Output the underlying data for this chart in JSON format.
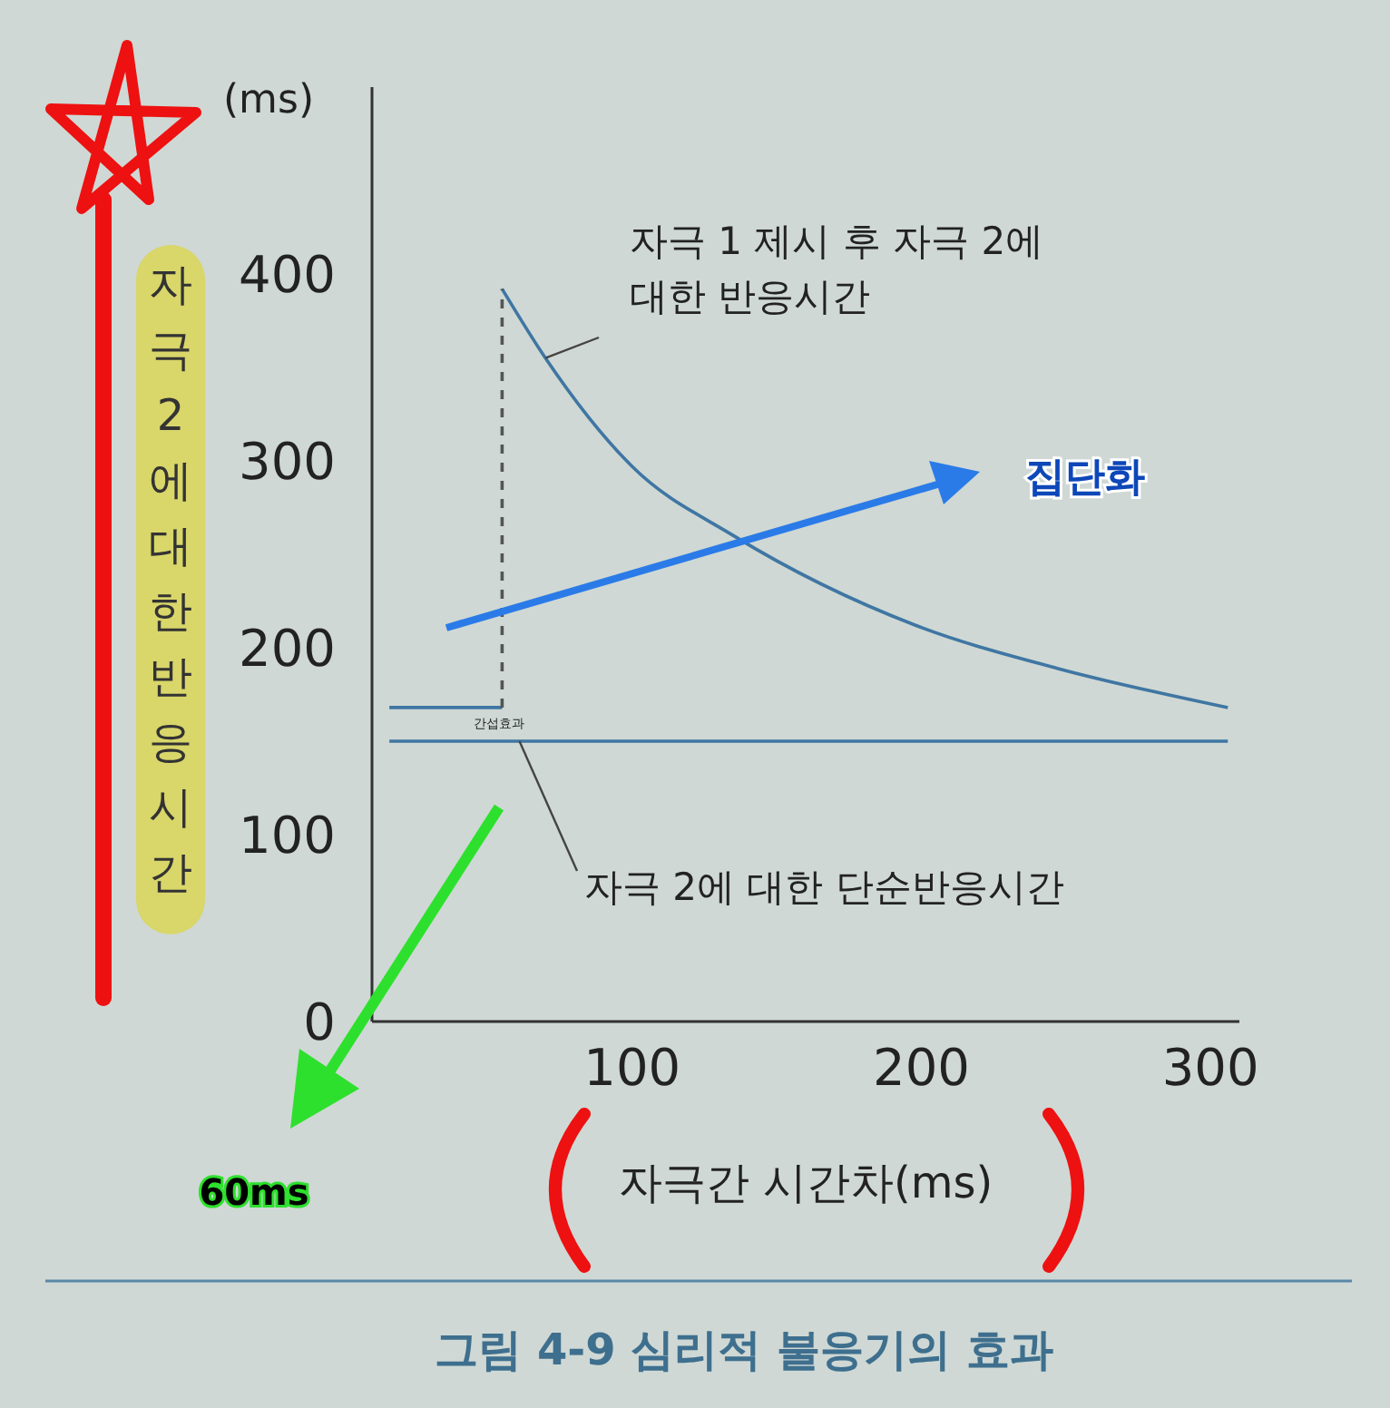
{
  "chart_data": {
    "type": "line",
    "title": "그림 4-9  심리적 불응기의 효과",
    "xlabel": "자극간 시간차(ms)",
    "ylabel": "자극2에대한반응시간",
    "xlim": [
      10,
      310
    ],
    "xticks": [
      100,
      200,
      300
    ],
    "ylim": [
      0,
      500
    ],
    "yticks": [
      0,
      100,
      200,
      300,
      400
    ],
    "grid": false,
    "series": [
      {
        "color": "#3f76a3",
        "x": [
          55,
          70,
          100,
          135,
          198,
          247,
          306
        ],
        "values": [
          392,
          355,
          297,
          260,
          212,
          189,
          168
        ]
      },
      {
        "color": "#3f76a3",
        "x": [
          16,
          55
        ],
        "values": [
          168,
          168
        ]
      },
      {
        "color": "#555555",
        "x": [
          55,
          55
        ],
        "values": [
          168,
          392
        ],
        "line_style": "dashed"
      },
      {
        "color": "#3f76a3",
        "x": [
          16,
          306
        ],
        "values": [
          150,
          150
        ]
      }
    ],
    "annotations": [
      "(ms)",
      {
        "text": "자극 1 제시 후 자극 2에 대한 반응시간",
        "x": 70,
        "y": 355
      },
      {
        "text": "자극 2에 대한 단순반응시간",
        "x": 61,
        "y": 150
      },
      "간섭효과",
      "집단화",
      "60ms"
    ]
  }
}
